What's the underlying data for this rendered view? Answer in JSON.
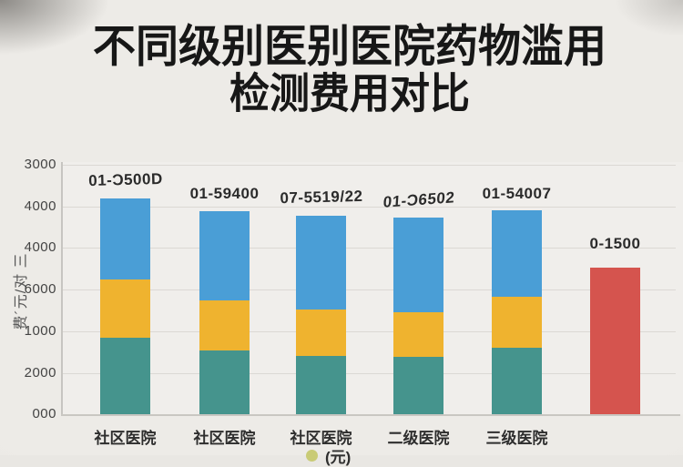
{
  "title": {
    "line1": "不同级别医别医院药物滥用",
    "line2": "检测费用对比"
  },
  "y_axis": {
    "label": "费´元/对 三",
    "ticks_top_to_bottom": [
      "3000",
      "4000",
      "4000",
      "6000",
      "1000",
      "2000",
      "000"
    ]
  },
  "legend": {
    "label": "(元)"
  },
  "colors": {
    "blue": "#4a9ed6",
    "yellow": "#efb32f",
    "teal": "#45948d",
    "red": "#d5544e",
    "background": "#e9e7e3",
    "title_text": "#171717"
  },
  "chart_data": {
    "type": "bar",
    "subtype": "stacked",
    "title": "不同级别医别医院药物滥用 检测费用对比",
    "xlabel": "",
    "ylabel": "费´元/对 三 (garbled)",
    "note": "AI-generated image; numeric text is garbled. Segment values estimated in gridline units (1 gridline interval ≈ 1000). Axis tick labels read top-to-bottom: 3000,4000,4000,6000,1000,2000,000.",
    "ylim_gridline_units": [
      0,
      6000
    ],
    "grid": true,
    "legend_position": "bottom-center (cut off)",
    "series_order_bottom_to_top": [
      "teal",
      "yellow",
      "blue"
    ],
    "categories": [
      "社区医院",
      "社区医院",
      "社区医院",
      "二级医院",
      "三级医院",
      ""
    ],
    "bars": [
      {
        "x_label": "社区医院",
        "top_label": "01-Ɔ500D",
        "segments": [
          {
            "color": "teal",
            "value": 1840
          },
          {
            "color": "yellow",
            "value": 1400
          },
          {
            "color": "blue",
            "value": 1950
          }
        ]
      },
      {
        "x_label": "社区医院",
        "top_label": "01-59400",
        "segments": [
          {
            "color": "teal",
            "value": 1530
          },
          {
            "color": "yellow",
            "value": 1200
          },
          {
            "color": "blue",
            "value": 2160
          }
        ]
      },
      {
        "x_label": "社区医院",
        "top_label": "07-5519/22",
        "segments": [
          {
            "color": "teal",
            "value": 1400
          },
          {
            "color": "yellow",
            "value": 1120
          },
          {
            "color": "blue",
            "value": 2250
          }
        ]
      },
      {
        "x_label": "二级医院",
        "top_label": "01-Ɔ6502",
        "segments": [
          {
            "color": "teal",
            "value": 1380
          },
          {
            "color": "yellow",
            "value": 1070
          },
          {
            "color": "blue",
            "value": 2280
          }
        ]
      },
      {
        "x_label": "三级医院",
        "top_label": "01-54007",
        "segments": [
          {
            "color": "teal",
            "value": 1600
          },
          {
            "color": "yellow",
            "value": 1230
          },
          {
            "color": "blue",
            "value": 2070
          }
        ]
      },
      {
        "x_label": "",
        "top_label": "0-1500",
        "segments": [
          {
            "color": "red",
            "value": 3520
          }
        ]
      }
    ]
  }
}
